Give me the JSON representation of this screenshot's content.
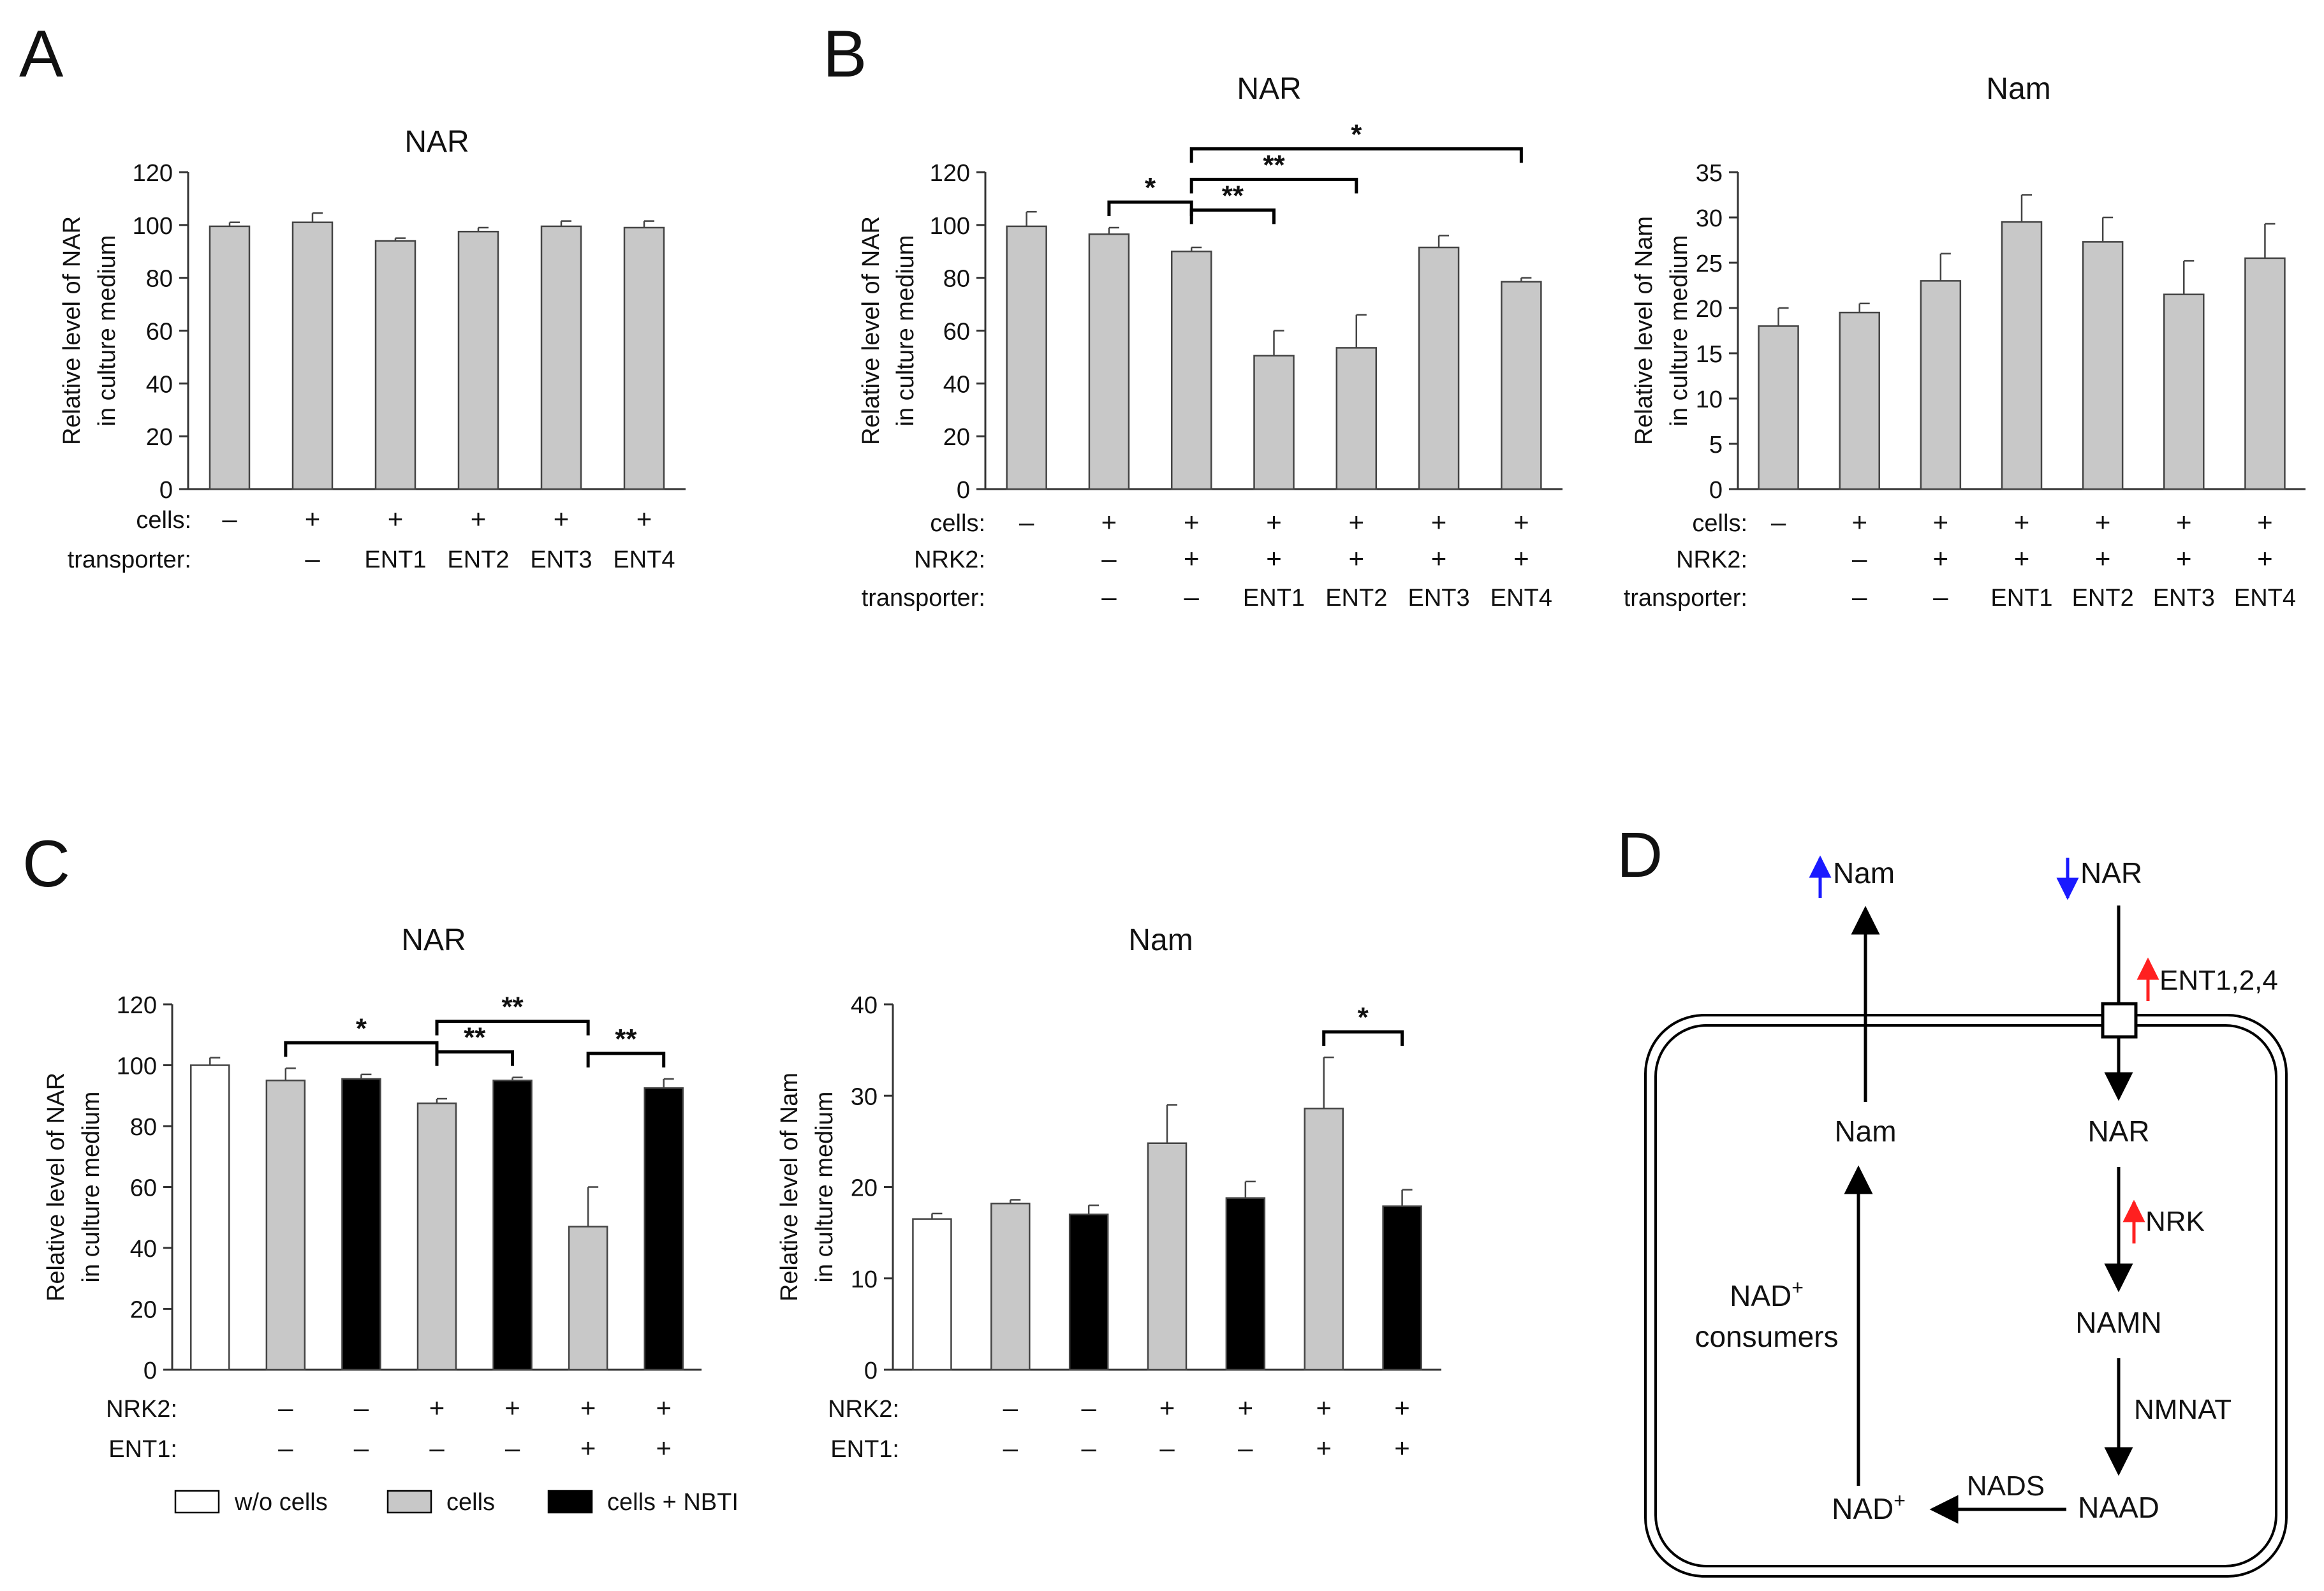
{
  "chart_data": [
    {
      "panel": "A",
      "type": "bar",
      "title": "NAR",
      "ylabel": [
        "Relative level of NAR",
        "in culture medium"
      ],
      "ylim": [
        0,
        120
      ],
      "yticks": [
        0,
        20,
        40,
        60,
        80,
        100,
        120
      ],
      "values": [
        99.5,
        101,
        94,
        97.5,
        99.5,
        99
      ],
      "errors": [
        1.5,
        3.5,
        1,
        1.5,
        2,
        2.5
      ],
      "colors": [
        "gray",
        "gray",
        "gray",
        "gray",
        "gray",
        "gray"
      ],
      "rows": [
        {
          "label": "cells:",
          "values": [
            "–",
            "+",
            "+",
            "+",
            "+",
            "+"
          ]
        },
        {
          "label": "transporter:",
          "values": [
            "",
            "–",
            "ENT1",
            "ENT2",
            "ENT3",
            "ENT4"
          ]
        }
      ],
      "sig": []
    },
    {
      "panel": "B",
      "type": "bar",
      "title": "NAR",
      "ylabel": [
        "Relative level of NAR",
        "in culture medium"
      ],
      "ylim": [
        0,
        120
      ],
      "yticks": [
        0,
        20,
        40,
        60,
        80,
        100,
        120
      ],
      "values": [
        99.5,
        96.5,
        90,
        50.5,
        53.5,
        91.5,
        78.5
      ],
      "errors": [
        5.5,
        2.5,
        1.5,
        9.5,
        12.5,
        4.5,
        1.5
      ],
      "colors": [
        "gray",
        "gray",
        "gray",
        "gray",
        "gray",
        "gray",
        "gray"
      ],
      "rows": [
        {
          "label": "cells:",
          "values": [
            "–",
            "+",
            "+",
            "+",
            "+",
            "+",
            "+"
          ]
        },
        {
          "label": "NRK2:",
          "values": [
            "",
            "–",
            "+",
            "+",
            "+",
            "+",
            "+"
          ]
        },
        {
          "label": "transporter:",
          "values": [
            "",
            "–",
            "–",
            "ENT1",
            "ENT2",
            "ENT3",
            "ENT4"
          ]
        }
      ],
      "sig": [
        {
          "from": 1,
          "to": 2,
          "label": "*",
          "level": 0
        },
        {
          "from": 2,
          "to": 3,
          "label": "**",
          "level": 0
        },
        {
          "from": 2,
          "to": 4,
          "label": "**",
          "level": 1
        },
        {
          "from": 2,
          "to": 6,
          "label": "*",
          "level": 2
        }
      ]
    },
    {
      "panel": "",
      "type": "bar",
      "title": "Nam",
      "ylabel": [
        "Relative level of Nam",
        "in culture medium"
      ],
      "ylim": [
        0,
        35
      ],
      "yticks": [
        0,
        5,
        10,
        15,
        20,
        25,
        30,
        35
      ],
      "values": [
        18,
        19.5,
        23,
        29.5,
        27.3,
        21.5,
        25.5
      ],
      "errors": [
        2,
        1,
        3,
        3,
        2.7,
        3.7,
        3.8
      ],
      "colors": [
        "gray",
        "gray",
        "gray",
        "gray",
        "gray",
        "gray",
        "gray"
      ],
      "rows": [
        {
          "label": "cells:",
          "values": [
            "–",
            "+",
            "+",
            "+",
            "+",
            "+",
            "+"
          ]
        },
        {
          "label": "NRK2:",
          "values": [
            "",
            "–",
            "+",
            "+",
            "+",
            "+",
            "+"
          ]
        },
        {
          "label": "transporter:",
          "values": [
            "",
            "–",
            "–",
            "ENT1",
            "ENT2",
            "ENT3",
            "ENT4"
          ]
        }
      ],
      "sig": []
    },
    {
      "panel": "C",
      "type": "bar",
      "title": "NAR",
      "ylabel": [
        "Relative level of NAR",
        "in culture medium"
      ],
      "ylim": [
        0,
        120
      ],
      "yticks": [
        0,
        20,
        40,
        60,
        80,
        100,
        120
      ],
      "values": [
        100,
        95,
        95.5,
        87.5,
        95,
        47,
        92.5
      ],
      "errors": [
        2.5,
        4,
        1.5,
        1.5,
        1,
        13,
        3
      ],
      "colors": [
        "white",
        "gray",
        "black",
        "gray",
        "black",
        "gray",
        "black"
      ],
      "rows": [
        {
          "label": "NRK2:",
          "values": [
            "",
            "–",
            "–",
            "+",
            "+",
            "+",
            "+"
          ]
        },
        {
          "label": "ENT1:",
          "values": [
            "",
            "–",
            "–",
            "–",
            "–",
            "+",
            "+"
          ]
        }
      ],
      "sig": [
        {
          "from": 1,
          "to": 3,
          "label": "*",
          "level": 0
        },
        {
          "from": 3,
          "to": 4,
          "label": "**",
          "level": 0
        },
        {
          "from": 3,
          "to": 5,
          "label": "**",
          "level": 1
        },
        {
          "from": 5,
          "to": 6,
          "label": "**",
          "level": 0
        }
      ]
    },
    {
      "panel": "",
      "type": "bar",
      "title": "Nam",
      "ylabel": [
        "Relative level of Nam",
        "in culture medium"
      ],
      "ylim": [
        0,
        40
      ],
      "yticks": [
        0,
        10,
        20,
        30,
        40
      ],
      "values": [
        16.5,
        18.2,
        17,
        24.8,
        18.8,
        28.6,
        17.9
      ],
      "errors": [
        0.6,
        0.4,
        1,
        4.2,
        1.8,
        5.6,
        1.8
      ],
      "colors": [
        "white",
        "gray",
        "black",
        "gray",
        "black",
        "gray",
        "black"
      ],
      "rows": [
        {
          "label": "NRK2:",
          "values": [
            "",
            "–",
            "–",
            "+",
            "+",
            "+",
            "+"
          ]
        },
        {
          "label": "ENT1:",
          "values": [
            "",
            "–",
            "–",
            "–",
            "–",
            "+",
            "+"
          ]
        }
      ],
      "sig": [
        {
          "from": 5,
          "to": 6,
          "label": "*",
          "level": 0
        }
      ]
    }
  ],
  "legend": [
    {
      "label": "w/o cells",
      "color": "white"
    },
    {
      "label": "cells",
      "color": "gray"
    },
    {
      "label": "cells + NBTI",
      "color": "black"
    }
  ],
  "colors": {
    "white": "#ffffff",
    "gray": "#c8c8c8",
    "black": "#000000",
    "axis": "#333333",
    "up_blue": "#1a1aff",
    "up_red": "#ff2020"
  },
  "diagram": {
    "panel": "D",
    "nam_out": "Nam",
    "nar_out": "NAR",
    "ent_label": "ENT1,2,4",
    "nam_in": "Nam",
    "nar_in": "NAR",
    "nrk_label": "NRK",
    "namn": "NAMN",
    "nmnat": "NMNAT",
    "naad": "NAAD",
    "nads": "NADS",
    "nad": "NAD",
    "nad_sup": "+",
    "consumers_line1": "NAD",
    "consumers_sup": "+",
    "consumers_line2": "consumers",
    "arrow_up": "↑",
    "arrow_down": "↓"
  }
}
